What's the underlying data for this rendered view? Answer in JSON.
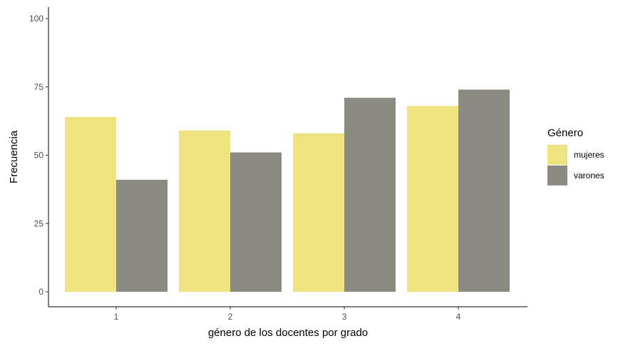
{
  "chart_data": {
    "type": "bar",
    "categories": [
      "1",
      "2",
      "3",
      "4"
    ],
    "series": [
      {
        "name": "mujeres",
        "values": [
          64,
          59,
          58,
          68
        ],
        "color": "#EDE381"
      },
      {
        "name": "varones",
        "values": [
          41,
          51,
          71,
          74
        ],
        "color": "#8B8B83"
      }
    ],
    "xlabel": "género de los docentes por grado",
    "ylabel": "Frecuencia",
    "ylim": [
      0,
      100
    ],
    "yticks": [
      0,
      25,
      50,
      75,
      100
    ],
    "legend": {
      "title": "Género",
      "position": "right"
    },
    "grid": false
  }
}
